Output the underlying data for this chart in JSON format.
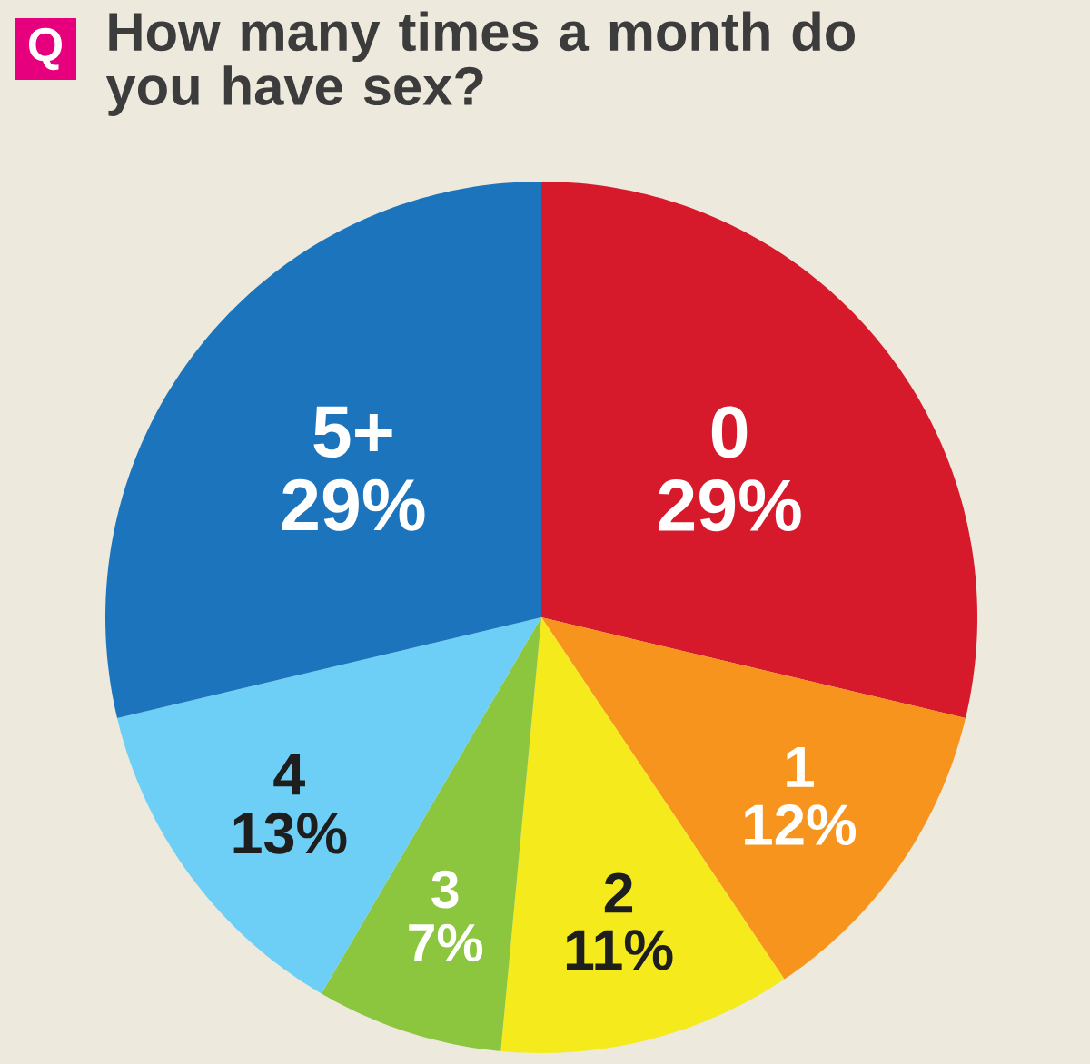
{
  "chart_data": {
    "type": "pie",
    "title": "How many times a month do you have sex?",
    "annotations": [
      "Q"
    ],
    "categories": [
      "0",
      "1",
      "2",
      "3",
      "4",
      "5+"
    ],
    "values": [
      29,
      12,
      11,
      7,
      13,
      29
    ],
    "value_labels": [
      "29%",
      "12%",
      "11%",
      "7%",
      "13%",
      "29%"
    ],
    "colors": [
      "#d71a2b",
      "#f7941d",
      "#f4ea1c",
      "#8cc63f",
      "#6dcff6",
      "#1c75bc"
    ]
  }
}
